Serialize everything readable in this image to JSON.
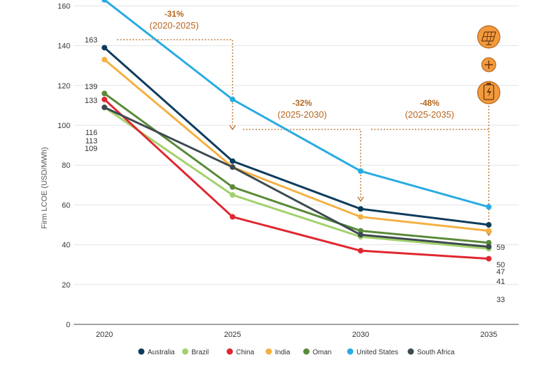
{
  "chart_data": {
    "type": "line",
    "title": "",
    "ylabel": "Firm LCOE (USD/MWh)",
    "xlabel": "",
    "x": [
      "2020",
      "2025",
      "2030",
      "2035"
    ],
    "ylim": [
      0,
      170
    ],
    "yticks": [
      0,
      20,
      40,
      60,
      80,
      100,
      120,
      140,
      160
    ],
    "grid": true,
    "legend_position": "bottom",
    "series": [
      {
        "name": "Australia",
        "color": "#0d3b5c",
        "values": [
          139,
          82,
          58,
          50
        ]
      },
      {
        "name": "Brazil",
        "color": "#a3d16c",
        "values": [
          109,
          65,
          44,
          38
        ]
      },
      {
        "name": "China",
        "color": "#e0262f",
        "values": [
          113,
          54,
          37,
          33
        ]
      },
      {
        "name": "India",
        "color": "#f5b042",
        "values": [
          133,
          79,
          54,
          47
        ]
      },
      {
        "name": "Oman",
        "color": "#5a8a3a",
        "values": [
          116,
          69,
          47,
          41
        ]
      },
      {
        "name": "United States",
        "color": "#29abe2",
        "values": [
          163,
          113,
          77,
          59
        ]
      },
      {
        "name": "South Africa",
        "color": "#3d4a4f",
        "values": [
          109,
          79,
          45,
          39
        ]
      }
    ],
    "start_labels": [
      "163",
      "139",
      "133",
      "116",
      "113",
      "109"
    ],
    "end_labels": [
      "59",
      "50",
      "47",
      "41",
      "33"
    ],
    "annotations": [
      {
        "pct": "-31%",
        "period": "(2020-2025)"
      },
      {
        "pct": "-32%",
        "period": "(2025-2030)"
      },
      {
        "pct": "-48%",
        "period": "(2025-2035)"
      }
    ],
    "icons": [
      "solar-panel-icon",
      "plus-icon",
      "battery-icon"
    ],
    "annotation_color": "#b5651d"
  }
}
